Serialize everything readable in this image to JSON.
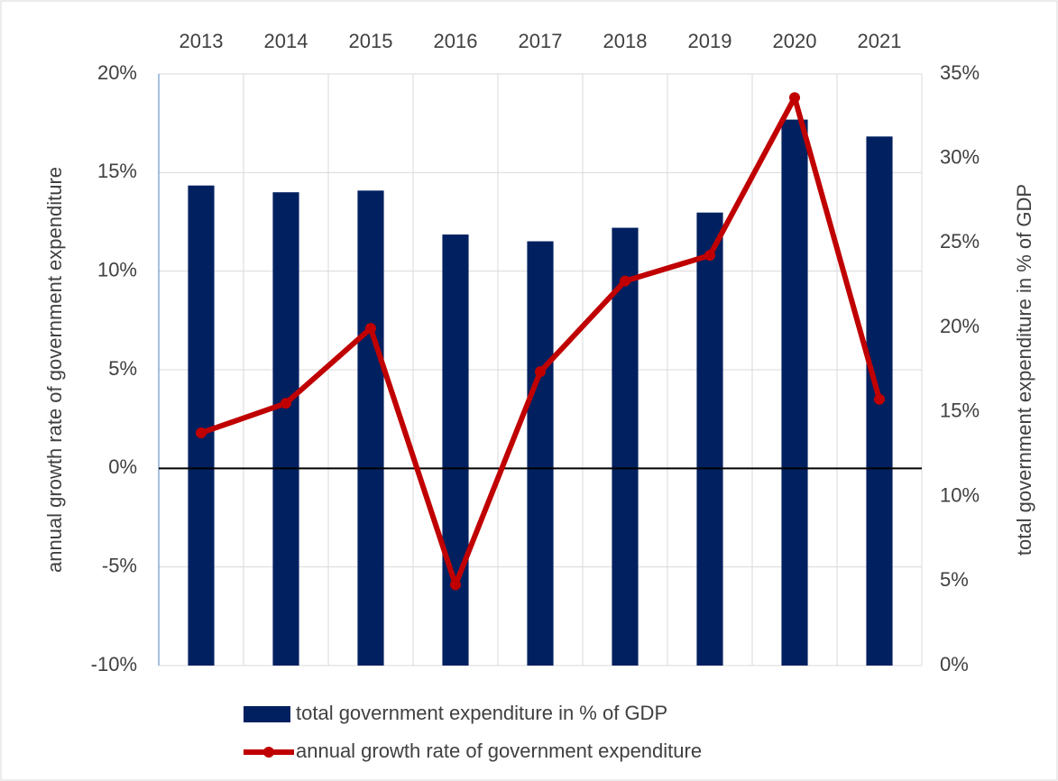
{
  "chart_data": {
    "type": "combo",
    "categories": [
      "2013",
      "2014",
      "2015",
      "2016",
      "2017",
      "2018",
      "2019",
      "2020",
      "2021"
    ],
    "ylabel": "annual growth rate of government expenditure",
    "y2label": "total government expenditure in % of GDP",
    "ylim": [
      -10,
      20
    ],
    "yticks": [
      {
        "value": -10,
        "label": "-10%"
      },
      {
        "value": -5,
        "label": "-5%"
      },
      {
        "value": 0,
        "label": "0%"
      },
      {
        "value": 5,
        "label": "5%"
      },
      {
        "value": 10,
        "label": "10%"
      },
      {
        "value": 15,
        "label": "15%"
      },
      {
        "value": 20,
        "label": "20%"
      }
    ],
    "y2lim": [
      0,
      35
    ],
    "y2ticks": [
      {
        "value": 0,
        "label": "0%"
      },
      {
        "value": 5,
        "label": "5%"
      },
      {
        "value": 10,
        "label": "10%"
      },
      {
        "value": 15,
        "label": "15%"
      },
      {
        "value": 20,
        "label": "20%"
      },
      {
        "value": 25,
        "label": "25%"
      },
      {
        "value": 30,
        "label": "30%"
      },
      {
        "value": 35,
        "label": "35%"
      }
    ],
    "grid": true,
    "legend": "bottom",
    "series": [
      {
        "name": "total government expenditure in % of GDP",
        "type": "bar",
        "axis": "y2",
        "color": "#002060",
        "values": [
          28.4,
          28.0,
          28.1,
          25.5,
          25.1,
          25.9,
          26.8,
          32.3,
          31.3
        ]
      },
      {
        "name": "annual growth rate of government expenditure",
        "type": "line",
        "axis": "y",
        "color": "#c00000",
        "values": [
          1.8,
          3.3,
          7.1,
          -5.9,
          4.9,
          9.5,
          10.8,
          18.8,
          3.5
        ]
      }
    ]
  }
}
